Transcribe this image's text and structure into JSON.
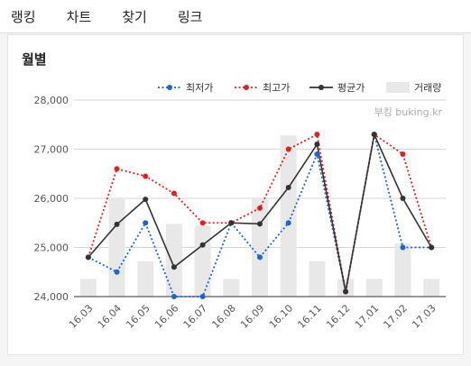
{
  "nav": {
    "tabs": [
      "랭킹",
      "차트",
      "찾기",
      "링크"
    ]
  },
  "panel": {
    "title": "월별"
  },
  "watermark": "부킹 buking.kr",
  "colors": {
    "min": "#1a66cc",
    "max": "#e02020",
    "avg": "#333333",
    "volume": "#e8e8e8"
  },
  "chart_data": {
    "type": "line",
    "categories": [
      "16.03",
      "16.04",
      "16.05",
      "16.06",
      "16.07",
      "16.08",
      "16.09",
      "16.10",
      "16.11",
      "16.12",
      "17.01",
      "17.02",
      "17.03"
    ],
    "ylim": [
      24000,
      28000
    ],
    "yticks": [
      "24,000",
      "25,000",
      "26,000",
      "27,000",
      "28,000"
    ],
    "grid": true,
    "legend_position": "top-right",
    "series": [
      {
        "name": "최저가",
        "style": "dotted",
        "values": [
          24800,
          24500,
          25500,
          24000,
          24000,
          25500,
          24800,
          25500,
          26900,
          24100,
          27300,
          25000,
          25000
        ]
      },
      {
        "name": "최고가",
        "style": "dotted",
        "values": [
          24800,
          26600,
          26450,
          26100,
          25500,
          25500,
          25800,
          27000,
          27300,
          24100,
          27300,
          26900,
          25000
        ]
      },
      {
        "name": "평균가",
        "style": "solid",
        "values": [
          24800,
          25470,
          25980,
          24600,
          25050,
          25500,
          25480,
          26220,
          27100,
          24100,
          27300,
          26000,
          25000
        ]
      }
    ],
    "volume": {
      "name": "거래량",
      "relative": [
        0.09,
        0.5,
        0.18,
        0.37,
        0.36,
        0.09,
        0.5,
        0.82,
        0.18,
        0.09,
        0.09,
        0.27,
        0.09
      ]
    }
  }
}
